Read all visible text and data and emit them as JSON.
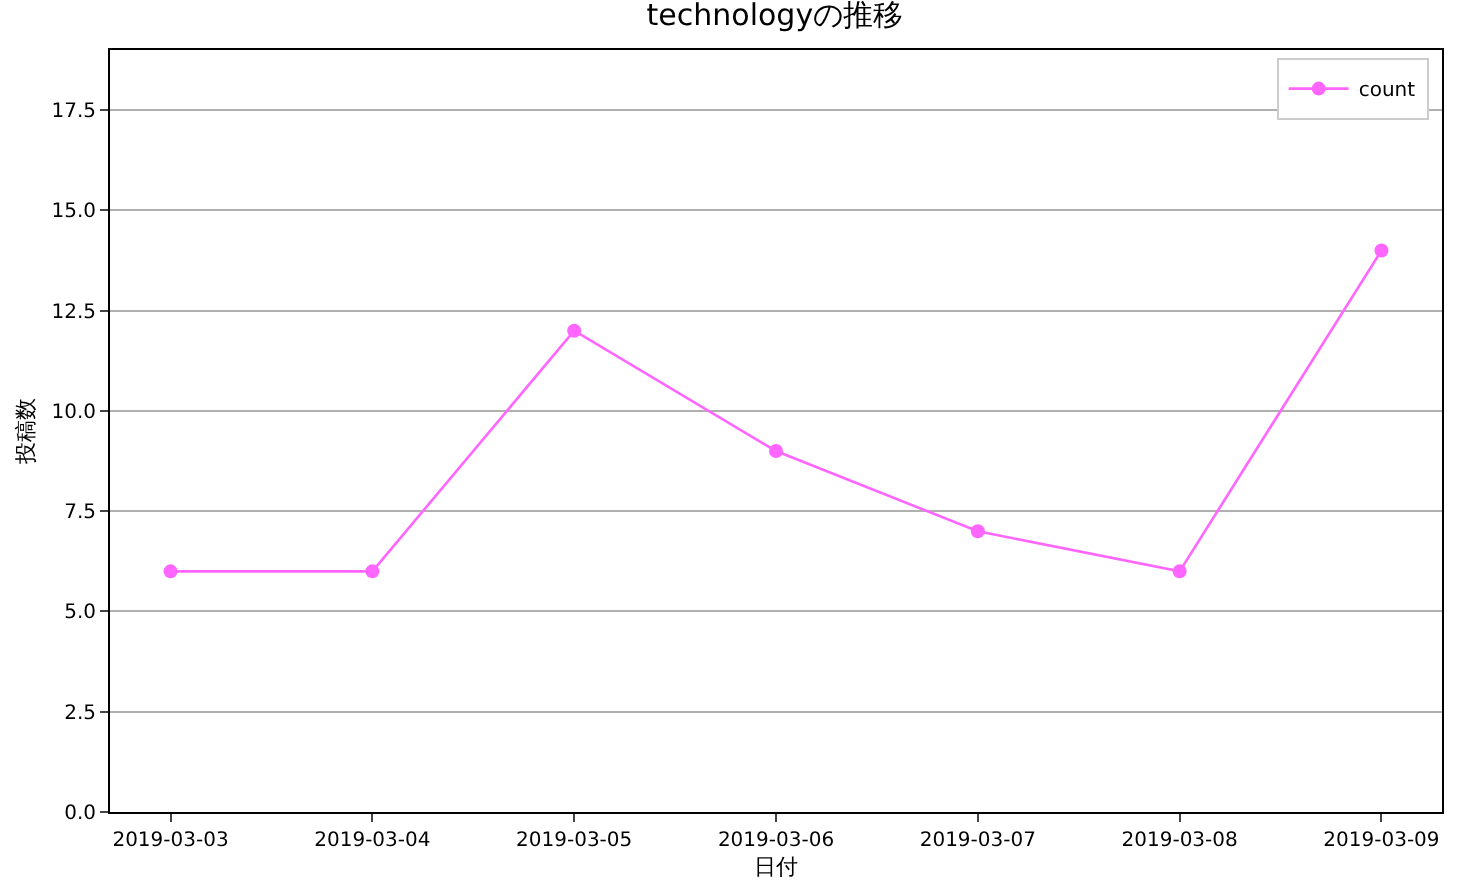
{
  "chart_data": {
    "type": "line",
    "title": "technologyの推移",
    "xlabel": "日付",
    "ylabel": "投稿数",
    "x": [
      "2019-03-03",
      "2019-03-04",
      "2019-03-05",
      "2019-03-06",
      "2019-03-07",
      "2019-03-08",
      "2019-03-09"
    ],
    "series": [
      {
        "name": "count",
        "color": "#ff66ff",
        "values": [
          6,
          6,
          12,
          9,
          7,
          6,
          14
        ]
      }
    ],
    "xlim": [
      "2019-03-02T16:48",
      "2019-03-09T07:12"
    ],
    "xticks": [
      "2019-03-03",
      "2019-03-04",
      "2019-03-05",
      "2019-03-06",
      "2019-03-07",
      "2019-03-08",
      "2019-03-09"
    ],
    "ylim": [
      0,
      19
    ],
    "yticks": [
      {
        "value": 0,
        "label": "0.0"
      },
      {
        "value": 2.5,
        "label": "2.5"
      },
      {
        "value": 5,
        "label": "5.0"
      },
      {
        "value": 7.5,
        "label": "7.5"
      },
      {
        "value": 10,
        "label": "10.0"
      },
      {
        "value": 12.5,
        "label": "12.5"
      },
      {
        "value": 15,
        "label": "15.0"
      },
      {
        "value": 17.5,
        "label": "17.5"
      }
    ],
    "grid": "y",
    "legend": "top right",
    "marker": "circle",
    "line_style": "solid"
  }
}
